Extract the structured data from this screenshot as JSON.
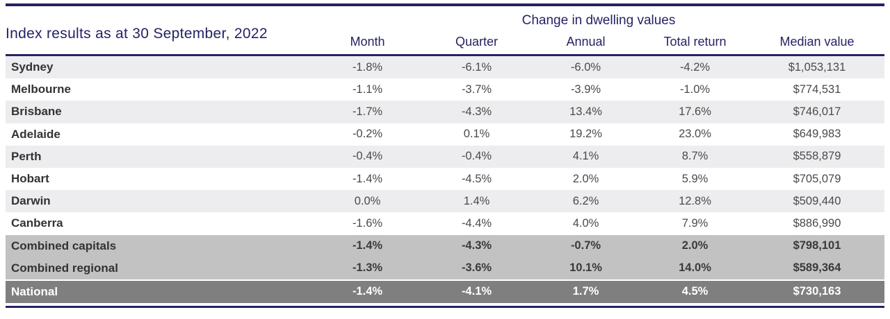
{
  "title": "Index results as at 30 September, 2022",
  "table": {
    "group_header": "Change in dwelling values",
    "columns": [
      "Month",
      "Quarter",
      "Annual",
      "Total return",
      "Median value"
    ],
    "rows": [
      {
        "label": "Sydney",
        "values": [
          "-1.8%",
          "-6.1%",
          "-6.0%",
          "-4.2%",
          "$1,053,131"
        ],
        "style": "striped"
      },
      {
        "label": "Melbourne",
        "values": [
          "-1.1%",
          "-3.7%",
          "-3.9%",
          "-1.0%",
          "$774,531"
        ],
        "style": "plain"
      },
      {
        "label": "Brisbane",
        "values": [
          "-1.7%",
          "-4.3%",
          "13.4%",
          "17.6%",
          "$746,017"
        ],
        "style": "striped"
      },
      {
        "label": "Adelaide",
        "values": [
          "-0.2%",
          "0.1%",
          "19.2%",
          "23.0%",
          "$649,983"
        ],
        "style": "plain"
      },
      {
        "label": "Perth",
        "values": [
          "-0.4%",
          "-0.4%",
          "4.1%",
          "8.7%",
          "$558,879"
        ],
        "style": "striped"
      },
      {
        "label": "Hobart",
        "values": [
          "-1.4%",
          "-4.5%",
          "2.0%",
          "5.9%",
          "$705,079"
        ],
        "style": "plain"
      },
      {
        "label": "Darwin",
        "values": [
          "0.0%",
          "1.4%",
          "6.2%",
          "12.8%",
          "$509,440"
        ],
        "style": "striped"
      },
      {
        "label": "Canberra",
        "values": [
          "-1.6%",
          "-4.4%",
          "4.0%",
          "7.9%",
          "$886,990"
        ],
        "style": "plain"
      },
      {
        "label": "Combined capitals",
        "values": [
          "-1.4%",
          "-4.3%",
          "-0.7%",
          "2.0%",
          "$798,101"
        ],
        "style": "summary"
      },
      {
        "label": "Combined regional",
        "values": [
          "-1.3%",
          "-3.6%",
          "10.1%",
          "14.0%",
          "$589,364"
        ],
        "style": "summary"
      },
      {
        "label": "National",
        "values": [
          "-1.4%",
          "-4.1%",
          "1.7%",
          "4.5%",
          "$730,163"
        ],
        "style": "national"
      }
    ]
  },
  "colors": {
    "navy": "#252264",
    "stripe": "#ededef",
    "summary_bg": "#c2c2c2",
    "national_bg": "#7f7f7f",
    "label_text": "#333333",
    "value_text": "#4a4a4a"
  }
}
